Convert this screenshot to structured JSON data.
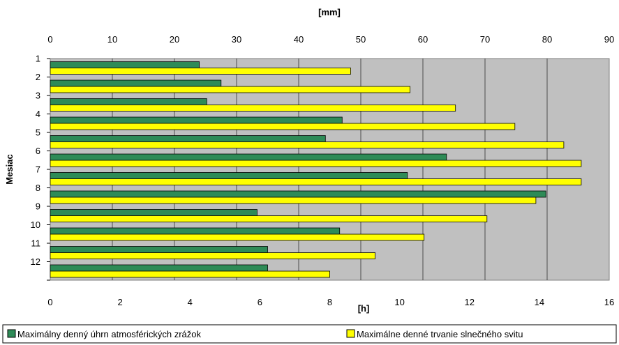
{
  "chart_data": {
    "type": "bar",
    "orientation": "horizontal",
    "categories": [
      "1",
      "2",
      "3",
      "4",
      "5",
      "6",
      "7",
      "8",
      "9",
      "10",
      "11",
      "12"
    ],
    "series": [
      {
        "name": "Maximálny denný úhrn atmosférických zrážok",
        "axis": "top",
        "color": "#2e8b57",
        "values": [
          24.0,
          27.5,
          25.2,
          47.0,
          44.3,
          63.8,
          57.5,
          79.8,
          33.3,
          46.6,
          35.0,
          35.0
        ]
      },
      {
        "name": "Maximálne denné trvanie slnečného svitu",
        "axis": "bottom",
        "color": "#ffff00",
        "values": [
          8.6,
          10.3,
          11.6,
          13.3,
          14.7,
          15.2,
          15.2,
          13.9,
          12.5,
          10.7,
          9.3,
          8.0
        ]
      }
    ],
    "top_axis": {
      "label": "[mm]",
      "min": 0,
      "max": 90,
      "ticks": [
        "0",
        "10",
        "20",
        "30",
        "40",
        "50",
        "60",
        "70",
        "80",
        "90"
      ]
    },
    "bottom_axis": {
      "label": "[h]",
      "min": 0,
      "max": 16,
      "ticks": [
        "0",
        "2",
        "4",
        "6",
        "8",
        "10",
        "12",
        "14",
        "16"
      ]
    },
    "ylabel": "Mesiac",
    "grid": true,
    "plot_background": "#c0c0c0",
    "legend_position": "bottom"
  }
}
